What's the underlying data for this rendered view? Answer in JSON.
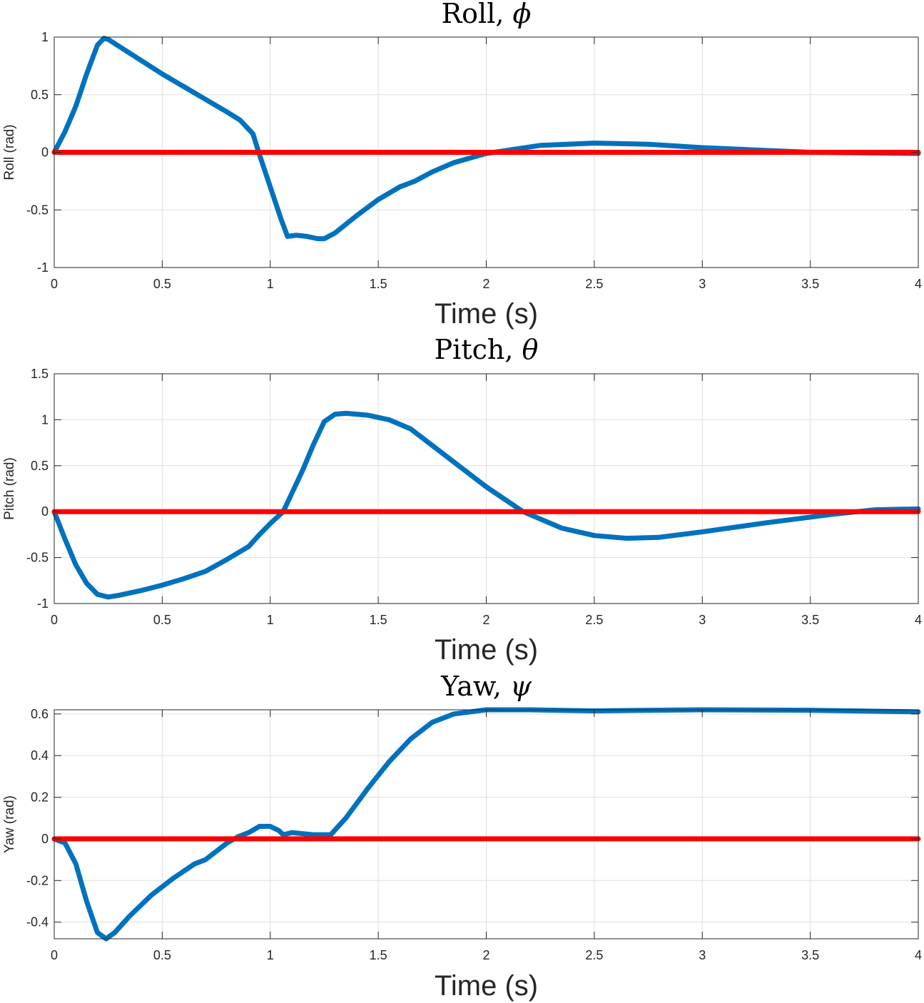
{
  "colors": {
    "actual": "#0072BD",
    "reference": "#FF0000"
  },
  "chart_data": [
    {
      "type": "line",
      "title": "Roll, ",
      "title_symbol": "ϕ",
      "xlabel": "Time (s)",
      "ylabel": "Roll (rad)",
      "xlim": [
        0,
        4
      ],
      "ylim": [
        -1,
        1
      ],
      "xticks": [
        0,
        0.5,
        1,
        1.5,
        2,
        2.5,
        3,
        3.5,
        4
      ],
      "xtick_labels": [
        "0",
        "0.5",
        "1",
        "1.5",
        "2",
        "2.5",
        "3",
        "3.5",
        "4"
      ],
      "yticks": [
        -1,
        -0.5,
        0,
        0.5,
        1
      ],
      "ytick_labels": [
        "-1",
        "-0.5",
        "0",
        "0.5",
        "1"
      ],
      "grid": true,
      "series": [
        {
          "color": "#0072BD",
          "x": [
            0,
            0.05,
            0.1,
            0.15,
            0.2,
            0.23,
            0.25,
            0.3,
            0.4,
            0.5,
            0.6,
            0.7,
            0.8,
            0.86,
            0.9,
            0.92,
            0.95,
            1.0,
            1.05,
            1.08,
            1.12,
            1.17,
            1.22,
            1.25,
            1.3,
            1.4,
            1.5,
            1.6,
            1.67,
            1.75,
            1.85,
            2.0,
            2.25,
            2.5,
            2.75,
            3.0,
            3.5,
            4.0
          ],
          "y": [
            0,
            0.18,
            0.4,
            0.68,
            0.93,
            0.99,
            0.98,
            0.92,
            0.8,
            0.68,
            0.57,
            0.46,
            0.35,
            0.28,
            0.2,
            0.16,
            -0.02,
            -0.3,
            -0.58,
            -0.73,
            -0.72,
            -0.73,
            -0.75,
            -0.75,
            -0.7,
            -0.55,
            -0.41,
            -0.3,
            -0.25,
            -0.17,
            -0.09,
            -0.01,
            0.06,
            0.08,
            0.07,
            0.04,
            0.0,
            -0.01
          ]
        },
        {
          "color": "#FF0000",
          "x": [
            0,
            4
          ],
          "y": [
            0,
            0
          ]
        }
      ]
    },
    {
      "type": "line",
      "title": "Pitch, ",
      "title_symbol": "θ",
      "xlabel": "Time (s)",
      "ylabel": "Pitch (rad)",
      "xlim": [
        0,
        4
      ],
      "ylim": [
        -1,
        1.5
      ],
      "xticks": [
        0,
        0.5,
        1,
        1.5,
        2,
        2.5,
        3,
        3.5,
        4
      ],
      "xtick_labels": [
        "0",
        "0.5",
        "1",
        "1.5",
        "2",
        "2.5",
        "3",
        "3.5",
        "4"
      ],
      "yticks": [
        -1,
        -0.5,
        0,
        0.5,
        1,
        1.5
      ],
      "ytick_labels": [
        "-1",
        "-0.5",
        "0",
        "0.5",
        "1",
        "1.5"
      ],
      "grid": true,
      "series": [
        {
          "color": "#0072BD",
          "x": [
            0,
            0.05,
            0.1,
            0.15,
            0.2,
            0.25,
            0.3,
            0.4,
            0.5,
            0.6,
            0.7,
            0.8,
            0.9,
            0.95,
            1.0,
            1.06,
            1.1,
            1.15,
            1.2,
            1.25,
            1.3,
            1.35,
            1.45,
            1.55,
            1.65,
            1.75,
            1.9,
            2.0,
            2.17,
            2.35,
            2.5,
            2.65,
            2.8,
            3.0,
            3.3,
            3.6,
            3.8,
            4.0
          ],
          "y": [
            0,
            -0.3,
            -0.58,
            -0.78,
            -0.9,
            -0.93,
            -0.91,
            -0.86,
            -0.8,
            -0.73,
            -0.65,
            -0.52,
            -0.38,
            -0.25,
            -0.13,
            0.0,
            0.2,
            0.45,
            0.73,
            0.98,
            1.06,
            1.07,
            1.05,
            1.0,
            0.9,
            0.72,
            0.45,
            0.27,
            0.0,
            -0.18,
            -0.26,
            -0.29,
            -0.28,
            -0.22,
            -0.12,
            -0.03,
            0.02,
            0.03
          ]
        },
        {
          "color": "#FF0000",
          "x": [
            0,
            4
          ],
          "y": [
            0,
            0
          ]
        }
      ]
    },
    {
      "type": "line",
      "title": "Yaw, ",
      "title_symbol": "ψ",
      "xlabel": "Time (s)",
      "ylabel": "Yaw (rad)",
      "xlim": [
        0,
        4
      ],
      "ylim": [
        -0.48,
        0.62
      ],
      "xticks": [
        0,
        0.5,
        1,
        1.5,
        2,
        2.5,
        3,
        3.5,
        4
      ],
      "xtick_labels": [
        "0",
        "0.5",
        "1",
        "1.5",
        "2",
        "2.5",
        "3",
        "3.5",
        "4"
      ],
      "yticks": [
        -0.4,
        -0.2,
        0,
        0.2,
        0.4,
        0.6
      ],
      "ytick_labels": [
        "-0.4",
        "-0.2",
        "0",
        "0.2",
        "0.4",
        "0.6"
      ],
      "grid": true,
      "series": [
        {
          "color": "#0072BD",
          "x": [
            0,
            0.05,
            0.1,
            0.15,
            0.2,
            0.24,
            0.28,
            0.35,
            0.45,
            0.55,
            0.65,
            0.7,
            0.8,
            0.85,
            0.9,
            0.95,
            1.0,
            1.04,
            1.06,
            1.1,
            1.2,
            1.28,
            1.35,
            1.45,
            1.55,
            1.65,
            1.75,
            1.85,
            2.0,
            2.2,
            2.5,
            3.0,
            3.5,
            4.0
          ],
          "y": [
            0,
            -0.02,
            -0.12,
            -0.3,
            -0.45,
            -0.48,
            -0.45,
            -0.37,
            -0.27,
            -0.19,
            -0.12,
            -0.1,
            -0.02,
            0.01,
            0.03,
            0.06,
            0.06,
            0.04,
            0.02,
            0.03,
            0.02,
            0.02,
            0.1,
            0.24,
            0.37,
            0.48,
            0.56,
            0.6,
            0.62,
            0.62,
            0.615,
            0.62,
            0.618,
            0.61
          ]
        },
        {
          "color": "#FF0000",
          "x": [
            0,
            4
          ],
          "y": [
            0,
            0
          ]
        }
      ]
    }
  ]
}
